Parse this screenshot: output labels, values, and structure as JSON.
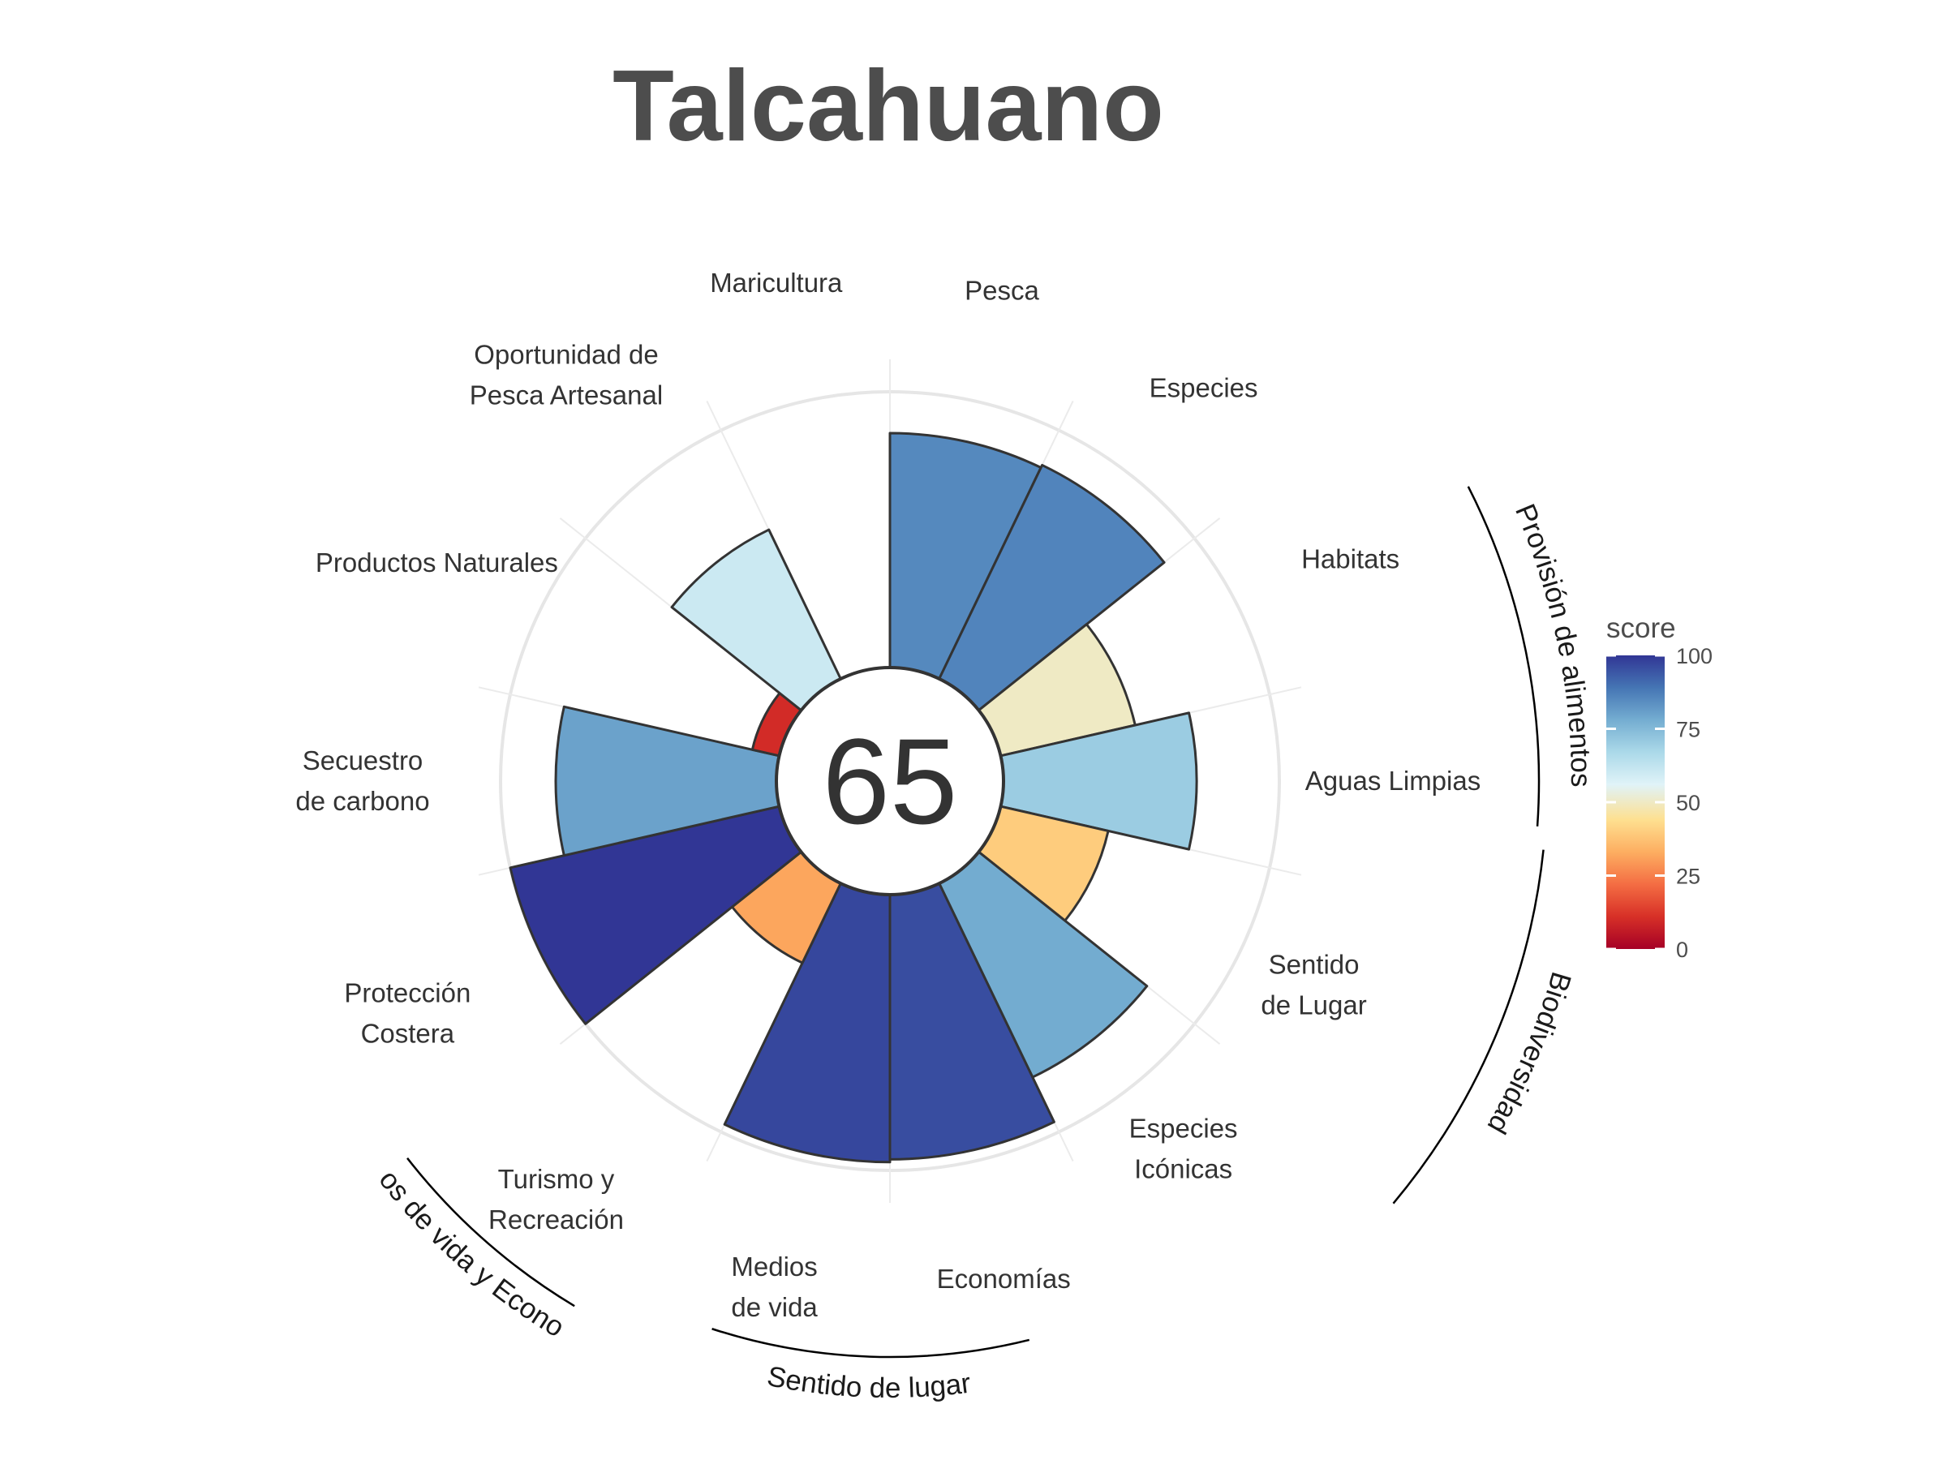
{
  "chart_data": {
    "type": "polar-bar",
    "title": "Talcahuano",
    "center_score": "65",
    "ylim": [
      0,
      100
    ],
    "categories": [
      {
        "label": [
          "Pesca"
        ],
        "value": 85
      },
      {
        "label": [
          "Especies"
        ],
        "value": 86
      },
      {
        "label": [
          "Habitats"
        ],
        "value": 50
      },
      {
        "label": [
          "Aguas Limpias"
        ],
        "value": 70
      },
      {
        "label": [
          "Sentido",
          "de Lugar"
        ],
        "value": 40
      },
      {
        "label": [
          "Especies",
          "Icónicas"
        ],
        "value": 78
      },
      {
        "label": [
          "Economías"
        ],
        "value": 96
      },
      {
        "label": [
          "Medios",
          "de vida"
        ],
        "value": 97
      },
      {
        "label": [
          "Turismo y",
          "Recreación"
        ],
        "value": 32
      },
      {
        "label": [
          "Protección",
          "Costera"
        ],
        "value": 100
      },
      {
        "label": [
          "Secuestro",
          "de carbono"
        ],
        "value": 80
      },
      {
        "label": [
          "Productos Naturales"
        ],
        "value": 10
      },
      {
        "label": [
          "Oportunidad de",
          "Pesca Artesanal"
        ],
        "value": 60
      },
      {
        "label": [
          "Maricultura"
        ],
        "value": null
      }
    ],
    "groups": [
      {
        "name": "Provisión de alimentos"
      },
      {
        "name": "Biodiversidad"
      },
      {
        "name": "Sentido de lugar"
      },
      {
        "name": "Medios de vida y Economías"
      }
    ],
    "legend": {
      "title": "score",
      "ticks": [
        "0",
        "25",
        "50",
        "75",
        "100"
      ],
      "colors": [
        "#a50026",
        "#d73027",
        "#f46d43",
        "#fdae61",
        "#fee090",
        "#e0f3f8",
        "#abd9e9",
        "#74add1",
        "#4575b4",
        "#313695"
      ]
    }
  }
}
